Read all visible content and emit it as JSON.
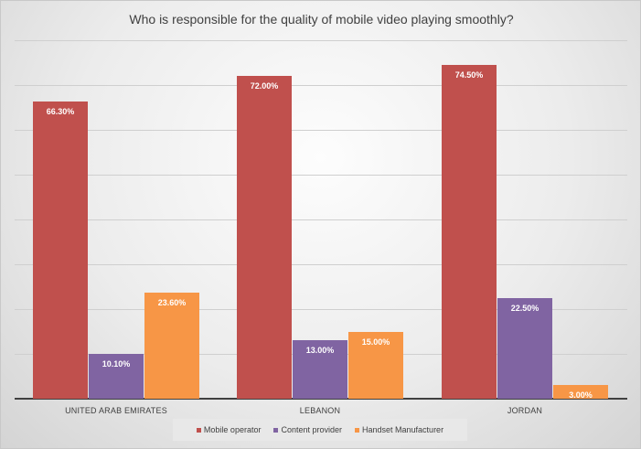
{
  "chart_data": {
    "type": "bar",
    "title": "Who is responsible for the quality of mobile video playing smoothly?",
    "xlabel": "",
    "ylabel": "",
    "ylim": [
      0,
      80
    ],
    "grid": true,
    "legend_position": "bottom",
    "categories": [
      "UNITED ARAB EMIRATES",
      "LEBANON",
      "JORDAN"
    ],
    "series": [
      {
        "name": "Mobile operator",
        "color": "#c0504d",
        "values": [
          66.3,
          72.0,
          74.5
        ],
        "labels": [
          "66.30%",
          "72.00%",
          "74.50%"
        ]
      },
      {
        "name": "Content provider",
        "color": "#8064a2",
        "values": [
          10.1,
          13.0,
          22.5
        ],
        "labels": [
          "10.10%",
          "13.00%",
          "22.50%"
        ]
      },
      {
        "name": "Handset Manufacturer",
        "color": "#f79646",
        "values": [
          23.6,
          15.0,
          3.0
        ],
        "labels": [
          "23.60%",
          "15.00%",
          "3.00%"
        ]
      }
    ]
  }
}
